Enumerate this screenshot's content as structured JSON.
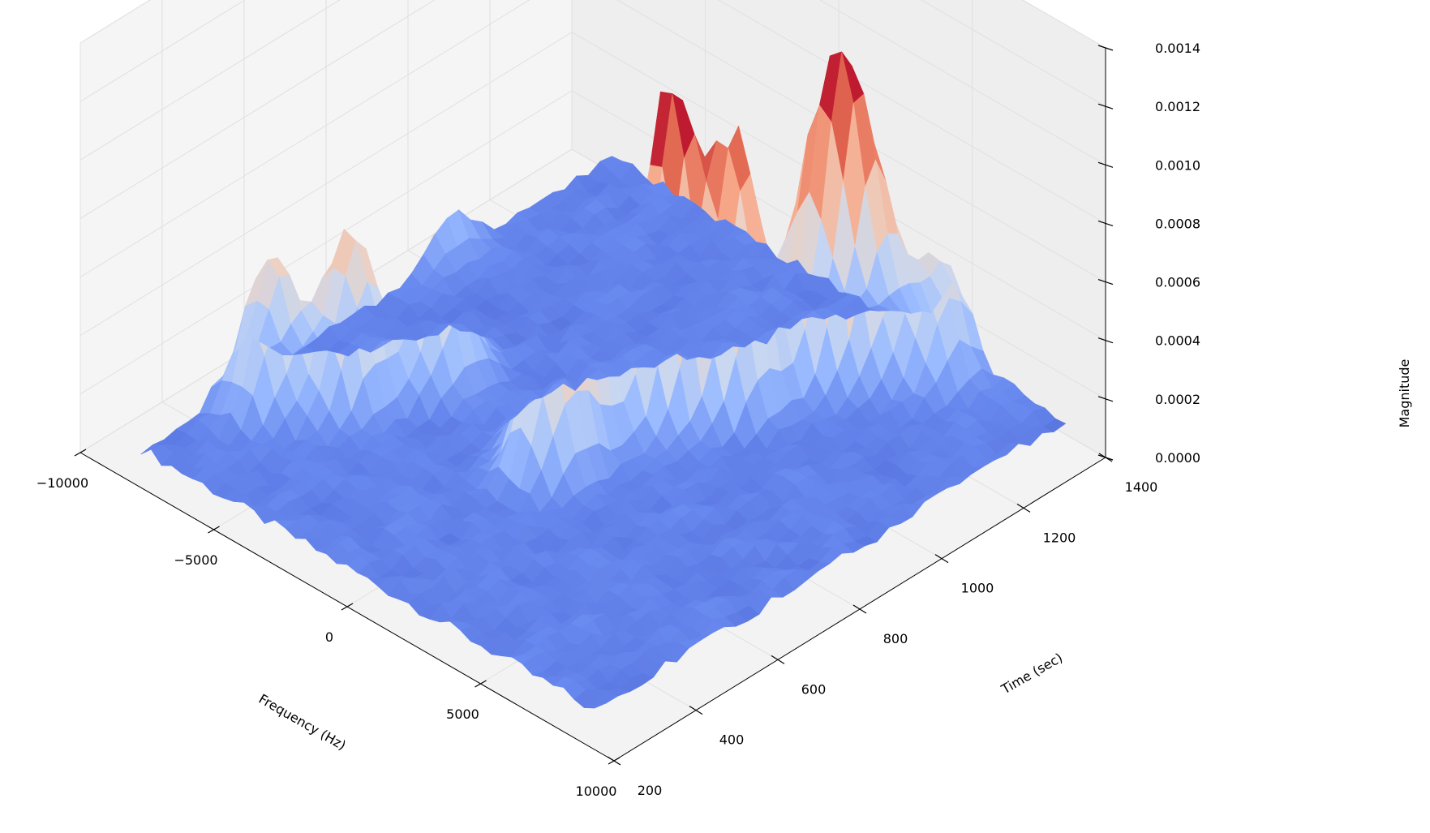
{
  "chart_data": {
    "type": "surface3d",
    "title": "",
    "xlabel": "Frequency (Hz)",
    "ylabel": "Time (sec)",
    "zlabel": "Magnitude",
    "xlim": [
      -10000,
      10000
    ],
    "ylim": [
      200,
      1400
    ],
    "zlim": [
      0,
      0.0014
    ],
    "x_ticks": [
      "−10000",
      "−5000",
      "0",
      "5000",
      "10000"
    ],
    "y_ticks": [
      "200",
      "400",
      "600",
      "800",
      "1000",
      "1200",
      "1400"
    ],
    "z_ticks": [
      "0.0000",
      "0.0002",
      "0.0004",
      "0.0006",
      "0.0008",
      "0.0010",
      "0.0012",
      "0.0014"
    ],
    "colormap": [
      "#3b4cc0",
      "#6788ee",
      "#9abbff",
      "#c9d7f0",
      "#edd1c2",
      "#f7a889",
      "#e26952",
      "#b40426"
    ],
    "grid": true,
    "peaks": [
      {
        "x": 500,
        "y": 950,
        "z": 0.0011
      },
      {
        "x": 1500,
        "y": 1050,
        "z": 0.0009
      },
      {
        "x": -500,
        "y": 800,
        "z": 0.0008
      },
      {
        "x": 0,
        "y": 700,
        "z": 0.0006
      },
      {
        "x": 2500,
        "y": 1250,
        "z": 0.0007
      },
      {
        "x": -6000,
        "y": 600,
        "z": 0.0006
      },
      {
        "x": -5000,
        "y": 750,
        "z": 0.0005
      },
      {
        "x": 3000,
        "y": 1300,
        "z": 0.0004
      },
      {
        "x": -7500,
        "y": 500,
        "z": 0.0005
      },
      {
        "x": 2000,
        "y": 1200,
        "z": 0.0005
      },
      {
        "x": 4500,
        "y": 1350,
        "z": 0.0004
      },
      {
        "x": -9000,
        "y": 1000,
        "z": 0.0002
      }
    ]
  }
}
